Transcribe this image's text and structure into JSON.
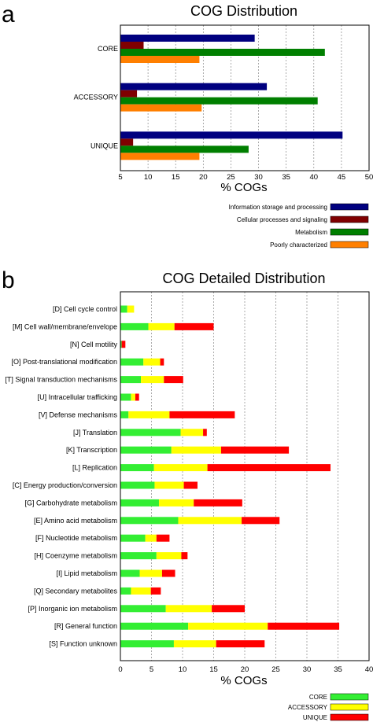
{
  "chart_data": [
    {
      "panel_label": "a",
      "type": "bar",
      "orientation": "horizontal",
      "title": "COG Distribution",
      "xlabel": "% COGs",
      "ylabel": "",
      "xlim": [
        5,
        50
      ],
      "xticks": [
        "5",
        "10",
        "15",
        "20",
        "25",
        "30",
        "35",
        "40",
        "45",
        "50"
      ],
      "grid": true,
      "legend_position": "bottom-right, below plot",
      "categories": [
        "CORE",
        "ACCESSORY",
        "UNIQUE"
      ],
      "series": [
        {
          "name": "Information storage and processing",
          "color": "#00007f",
          "values": [
            29.3,
            31.5,
            45.2
          ]
        },
        {
          "name": "Cellular processes and signaling",
          "color": "#7f0000",
          "values": [
            9.2,
            8.0,
            7.3
          ]
        },
        {
          "name": "Metabolism",
          "color": "#007f00",
          "values": [
            42.0,
            40.7,
            28.2
          ]
        },
        {
          "name": "Poorly characterized",
          "color": "#ff7f00",
          "values": [
            19.3,
            19.7,
            19.3
          ]
        }
      ]
    },
    {
      "panel_label": "b",
      "type": "bar",
      "orientation": "horizontal",
      "stacked": true,
      "title": "COG Detailed Distribution",
      "xlabel": "% COGs",
      "ylabel": "",
      "xlim": [
        0,
        40
      ],
      "xticks": [
        "0",
        "5",
        "10",
        "15",
        "20",
        "25",
        "30",
        "35",
        "40"
      ],
      "grid": true,
      "legend_position": "bottom-right, below plot",
      "categories": [
        "[D] Cell cycle control",
        "[M] Cell wall/membrane/envelope",
        "[N] Cell motility",
        "[O] Post-translational modification",
        "[T] Signal transduction mechanisms",
        "[U] Intracellular trafficking",
        "[V] Defense mechanisms",
        "[J] Translation",
        "[K] Transcription",
        "[L] Replication",
        "[C] Energy production/conversion",
        "[G] Carbohydrate metabolism",
        "[E] Amino acid metabolism",
        "[F] Nucleotide metabolism",
        "[H] Coenzyme metabolism",
        "[I] Lipid metabolism",
        "[Q] Secondary metabolites",
        "[P] Inorganic ion metabolism",
        "[R] General function",
        "[S] Function unknown"
      ],
      "series": [
        {
          "name": "CORE",
          "color": "#33ee33",
          "values": [
            1.1,
            4.5,
            0.2,
            3.7,
            3.3,
            1.7,
            1.3,
            9.7,
            8.2,
            5.4,
            5.5,
            6.2,
            9.3,
            4.0,
            5.8,
            3.1,
            1.7,
            7.3,
            10.9,
            8.6
          ]
        },
        {
          "name": "ACCESSORY",
          "color": "#ffff00",
          "values": [
            1.1,
            4.2,
            0.0,
            2.7,
            3.7,
            0.7,
            6.6,
            3.6,
            8.0,
            8.6,
            4.7,
            5.6,
            10.2,
            1.8,
            4.0,
            3.6,
            3.2,
            7.4,
            12.8,
            6.8
          ]
        },
        {
          "name": "UNIQUE",
          "color": "#ff0000",
          "values": [
            0.0,
            6.3,
            0.6,
            0.6,
            3.1,
            0.6,
            10.5,
            0.6,
            10.9,
            19.8,
            2.2,
            7.8,
            6.1,
            2.1,
            1.0,
            2.1,
            1.6,
            5.3,
            11.5,
            7.8
          ]
        }
      ]
    }
  ]
}
